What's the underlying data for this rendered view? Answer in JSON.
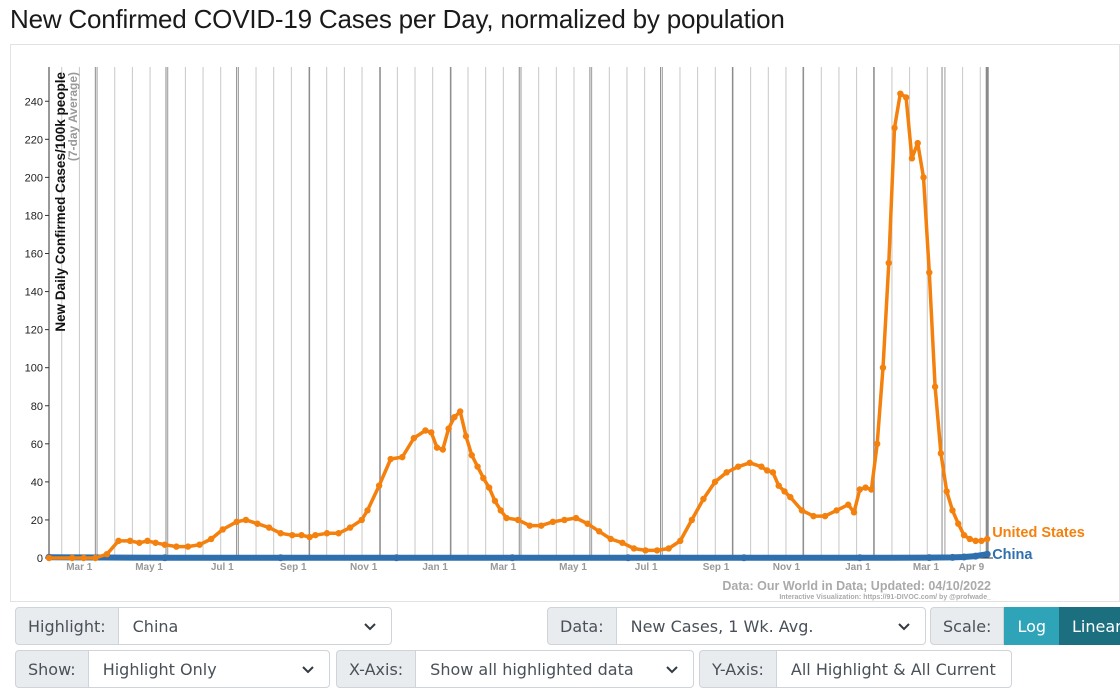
{
  "title": "New Confirmed COVID-19 Cases per Day, normalized by population",
  "chart_data": {
    "type": "line",
    "ylabel": "New Daily Confirmed Cases/100k people",
    "ylabel_sub": "(7-day Average)",
    "ylim": [
      0,
      258
    ],
    "yticks": [
      0,
      20,
      40,
      60,
      80,
      100,
      120,
      140,
      160,
      180,
      200,
      220,
      240
    ],
    "xlabels": [
      "Mar 1",
      "May 1",
      "Jul 1",
      "Sep 1",
      "Nov 1",
      "Jan 1",
      "Mar 1",
      "May 1",
      "Jul 1",
      "Sep 1",
      "Nov 1",
      "Jan 1",
      "Mar 1",
      "Apr 9"
    ],
    "xlabel_days": [
      40,
      101,
      162,
      225,
      286,
      347,
      406,
      467,
      528,
      590,
      651,
      712,
      771,
      810
    ],
    "xlim": [
      0,
      815
    ],
    "grid": true,
    "series": [
      {
        "name": "United States",
        "color": "#f4800e",
        "x": [
          0,
          20,
          30,
          40,
          50,
          60,
          70,
          78,
          85,
          92,
          100,
          110,
          120,
          130,
          140,
          150,
          162,
          170,
          180,
          190,
          200,
          210,
          218,
          225,
          230,
          240,
          250,
          260,
          270,
          275,
          285,
          295,
          305,
          315,
          325,
          330,
          335,
          340,
          345,
          350,
          355,
          360,
          365,
          370,
          375,
          380,
          385,
          390,
          395,
          405,
          415,
          425,
          435,
          445,
          455,
          465,
          475,
          485,
          495,
          505,
          515,
          525,
          535,
          545,
          555,
          565,
          575,
          585,
          595,
          605,
          615,
          620,
          625,
          630,
          635,
          640,
          650,
          660,
          670,
          680,
          690,
          695,
          700,
          705,
          710,
          715,
          720,
          725,
          730,
          735,
          740,
          745,
          750,
          755,
          760,
          765,
          770,
          775,
          780,
          785,
          790,
          795,
          800,
          805,
          810
        ],
        "y": [
          0,
          0,
          0,
          0,
          2,
          9,
          9,
          8,
          9,
          8,
          7,
          6,
          6,
          7,
          10,
          15,
          19,
          20,
          18,
          16,
          13,
          12,
          12,
          11,
          12,
          13,
          13,
          16,
          20,
          25,
          38,
          52,
          53,
          63,
          67,
          66,
          58,
          57,
          68,
          74,
          77,
          64,
          54,
          48,
          42,
          37,
          30,
          25,
          21,
          20,
          17,
          17,
          19,
          20,
          21,
          18,
          14,
          10,
          8,
          5,
          4,
          4,
          5,
          9,
          20,
          31,
          40,
          45,
          48,
          50,
          48,
          46,
          45,
          38,
          35,
          32,
          25,
          22,
          22,
          25,
          28,
          24,
          36,
          37,
          36,
          60,
          100,
          155,
          226,
          244,
          242,
          210,
          218,
          200,
          150,
          90,
          55,
          35,
          25,
          18,
          12,
          10,
          9,
          9,
          10
        ]
      },
      {
        "name": "China",
        "color": "#2f6fae",
        "x": [
          0,
          100,
          200,
          300,
          400,
          500,
          600,
          700,
          760,
          780,
          790,
          800,
          810
        ],
        "y": [
          0.4,
          0.1,
          0.1,
          0.1,
          0.1,
          0.1,
          0.1,
          0.1,
          0.2,
          0.3,
          0.5,
          1,
          2
        ]
      }
    ]
  },
  "source_line": "Data: Our World in Data; Updated: 04/10/2022",
  "credit_line": "Interactive Visualization: https://91-DIVOC.com/ by @profwade_",
  "controls": {
    "highlight_label": "Highlight:",
    "highlight_value": "China",
    "data_label": "Data:",
    "data_value": "New Cases, 1 Wk. Avg.",
    "scale_label": "Scale:",
    "scale_log": "Log",
    "scale_linear": "Linear",
    "show_label": "Show:",
    "show_value": "Highlight Only",
    "xaxis_label": "X-Axis:",
    "xaxis_value": "Show all highlighted data",
    "yaxis_label": "Y-Axis:",
    "yaxis_value": "All Highlight & All Current"
  }
}
